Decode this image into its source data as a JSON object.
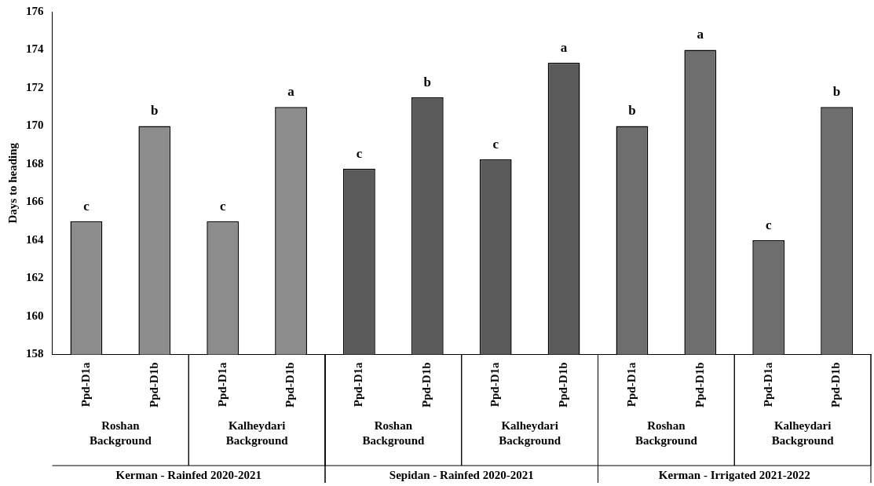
{
  "chart_data": {
    "type": "bar",
    "ylabel": "Days to heading",
    "categories": [
      "Ppd-D1a",
      "Ppd-D1b",
      "Ppd-D1a",
      "Ppd-D1b",
      "Ppd-D1a",
      "Ppd-D1b",
      "Ppd-D1a",
      "Ppd-D1b",
      "Ppd-D1a",
      "Ppd-D1b",
      "Ppd-D1a",
      "Ppd-D1b"
    ],
    "values": [
      165,
      170,
      165,
      171,
      167.75,
      171.5,
      168.25,
      173.33,
      170,
      174,
      164,
      171
    ],
    "colors": [
      "#8c8c8c",
      "#8c8c8c",
      "#8c8c8c",
      "#8c8c8c",
      "#5a5a5a",
      "#5a5a5a",
      "#5a5a5a",
      "#5a5a5a",
      "#6e6e6e",
      "#6e6e6e",
      "#6e6e6e",
      "#6e6e6e"
    ],
    "value_labels": [
      "c",
      "b",
      "c",
      "a",
      "c",
      "b",
      "c",
      "a",
      "b",
      "a",
      "c",
      "b"
    ],
    "ylim": [
      158,
      176
    ],
    "yticks": [
      158,
      160,
      162,
      164,
      166,
      168,
      170,
      172,
      174,
      176
    ],
    "grid": false,
    "legend": false,
    "annotations": [
      "Roshan Background",
      "Kalheydari Background",
      "Roshan Background",
      "Kalheydari Background",
      "Roshan Background",
      "Kalheydari Background",
      "Kerman - Rainfed 2020-2021",
      "Sepidan - Rainfed 2020-2021",
      "Kerman - Irrigated 2021-2022"
    ]
  }
}
